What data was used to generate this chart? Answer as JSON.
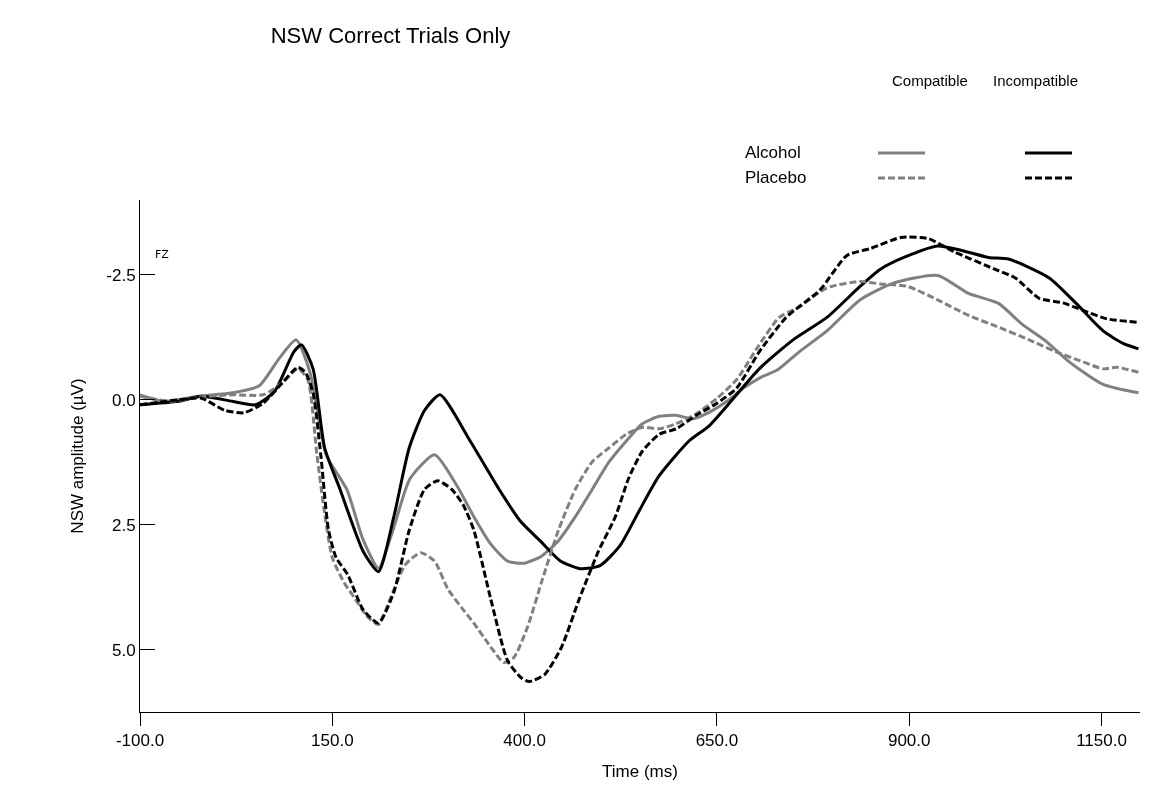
{
  "chart_data": {
    "type": "line",
    "title": "NSW Correct Trials Only",
    "xlabel": "Time (ms)",
    "ylabel": "NSW amplitude (µV)",
    "annotations": [
      "FZ",
      "Compatible",
      "Incompatible",
      "Alcohol",
      "Placebo"
    ],
    "xlim": [
      -100,
      1200
    ],
    "ylim": [
      6.25,
      -4.0
    ],
    "xticks": [
      {
        "value": -100,
        "label": "-100.0"
      },
      {
        "value": 150,
        "label": "150.0"
      },
      {
        "value": 400,
        "label": "400.0"
      },
      {
        "value": 650,
        "label": "650.0"
      },
      {
        "value": 900,
        "label": "900.0"
      },
      {
        "value": 1150,
        "label": "1150.0"
      }
    ],
    "yticks": [
      -2.5,
      {
        "value": 0,
        "label": "0.0"
      },
      2.5,
      {
        "value": 5,
        "label": "5.0"
      }
    ],
    "series": [
      {
        "color": "#808080",
        "line_style": "solid",
        "x": [
          -100,
          -68,
          -24,
          20,
          55,
          81,
          103,
          121,
          142,
          169,
          190,
          210,
          229,
          251,
          283,
          312,
          334,
          356,
          378,
          400,
          422,
          444,
          466,
          488,
          510,
          532,
          553,
          575,
          597,
          619,
          641,
          663,
          685,
          707,
          729,
          757,
          793,
          836,
          880,
          937,
          977,
          1016,
          1047,
          1078,
          1108,
          1152,
          1198
        ],
        "values": [
          -0.1,
          0.03,
          -0.07,
          -0.14,
          -0.28,
          -0.83,
          -1.2,
          -0.55,
          1.1,
          1.8,
          2.8,
          3.37,
          2.6,
          1.58,
          1.1,
          1.72,
          2.34,
          2.89,
          3.23,
          3.27,
          3.13,
          2.82,
          2.34,
          1.79,
          1.24,
          0.83,
          0.48,
          0.33,
          0.31,
          0.38,
          0.24,
          0.03,
          -0.24,
          -0.45,
          -0.6,
          -0.96,
          -1.38,
          -2.0,
          -2.34,
          -2.49,
          -2.13,
          -1.93,
          -1.51,
          -1.17,
          -0.76,
          -0.31,
          -0.14
        ]
      },
      {
        "color": "#000000",
        "line_style": "solid",
        "x": [
          -100,
          -50,
          -20,
          20,
          50,
          75,
          100,
          110,
          125,
          140,
          160,
          190,
          210,
          230,
          250,
          270,
          290,
          329,
          368,
          394,
          420,
          446,
          472,
          498,
          524,
          549,
          575,
          614,
          640,
          705,
          749,
          793,
          836,
          862,
          893,
          937,
          968,
          1003,
          1029,
          1082,
          1117,
          1152,
          1178,
          1198
        ],
        "values": [
          0.1,
          0.03,
          -0.07,
          0.03,
          0.1,
          -0.17,
          -0.96,
          -1.1,
          -0.62,
          0.96,
          1.79,
          3.03,
          3.44,
          2.34,
          0.96,
          0.21,
          -0.1,
          0.82,
          1.82,
          2.42,
          2.82,
          3.22,
          3.38,
          3.32,
          2.92,
          2.22,
          1.52,
          0.82,
          0.52,
          -0.62,
          -1.2,
          -1.65,
          -2.27,
          -2.61,
          -2.85,
          -3.08,
          -2.99,
          -2.85,
          -2.82,
          -2.44,
          -1.93,
          -1.38,
          -1.13,
          -1.02
        ]
      },
      {
        "color": "#808080",
        "line_style": "dashed",
        "x": [
          -100,
          -60,
          -20,
          20,
          60,
          85,
          105,
          118,
          130,
          140,
          150,
          165,
          180,
          195,
          210,
          225,
          245,
          265,
          283,
          300,
          320,
          334,
          356,
          373,
          386,
          404,
          422,
          444,
          466,
          488,
          510,
          532,
          553,
          575,
          597,
          623,
          650,
          676,
          702,
          731,
          757,
          793,
          836,
          862,
          898,
          937,
          977,
          1012,
          1056,
          1091,
          1126,
          1152,
          1170,
          1198
        ],
        "values": [
          -0.07,
          0.03,
          -0.06,
          -0.1,
          -0.1,
          -0.34,
          -0.62,
          -0.41,
          1.1,
          2.27,
          3.16,
          3.65,
          3.99,
          4.33,
          4.5,
          3.99,
          3.3,
          3.06,
          3.23,
          3.78,
          4.2,
          4.47,
          4.95,
          5.26,
          5.16,
          4.54,
          3.65,
          2.61,
          1.79,
          1.24,
          0.96,
          0.69,
          0.55,
          0.58,
          0.48,
          0.28,
          -0.03,
          -0.41,
          -1.03,
          -1.65,
          -1.86,
          -2.24,
          -2.37,
          -2.32,
          -2.27,
          -2.0,
          -1.69,
          -1.48,
          -1.2,
          -0.96,
          -0.76,
          -0.62,
          -0.65,
          -0.55
        ]
      },
      {
        "color": "#000000",
        "line_style": "dashed",
        "x": [
          -100,
          -50,
          -20,
          10,
          35,
          60,
          85,
          105,
          115,
          125,
          135,
          145,
          155,
          170,
          190,
          210,
          230,
          250,
          270,
          287,
          305,
          320,
          334,
          356,
          378,
          396,
          406,
          426,
          448,
          471,
          496,
          518,
          535,
          553,
          575,
          597,
          623,
          650,
          676,
          705,
          740,
          784,
          819,
          850,
          889,
          924,
          959,
          1012,
          1038,
          1069,
          1100,
          1126,
          1157,
          1198
        ],
        "values": [
          0.1,
          0.0,
          -0.03,
          0.21,
          0.26,
          0.07,
          -0.34,
          -0.65,
          -0.55,
          -0.14,
          1.1,
          2.6,
          3.16,
          3.5,
          4.2,
          4.47,
          3.85,
          2.61,
          1.79,
          1.62,
          1.79,
          2.1,
          2.61,
          3.99,
          5.23,
          5.57,
          5.64,
          5.5,
          4.95,
          3.99,
          3.03,
          2.34,
          1.58,
          1.03,
          0.69,
          0.58,
          0.31,
          0.07,
          -0.24,
          -0.96,
          -1.65,
          -2.2,
          -2.89,
          -3.03,
          -3.25,
          -3.23,
          -2.96,
          -2.61,
          -2.44,
          -2.03,
          -1.94,
          -1.79,
          -1.62,
          -1.55
        ]
      }
    ]
  }
}
